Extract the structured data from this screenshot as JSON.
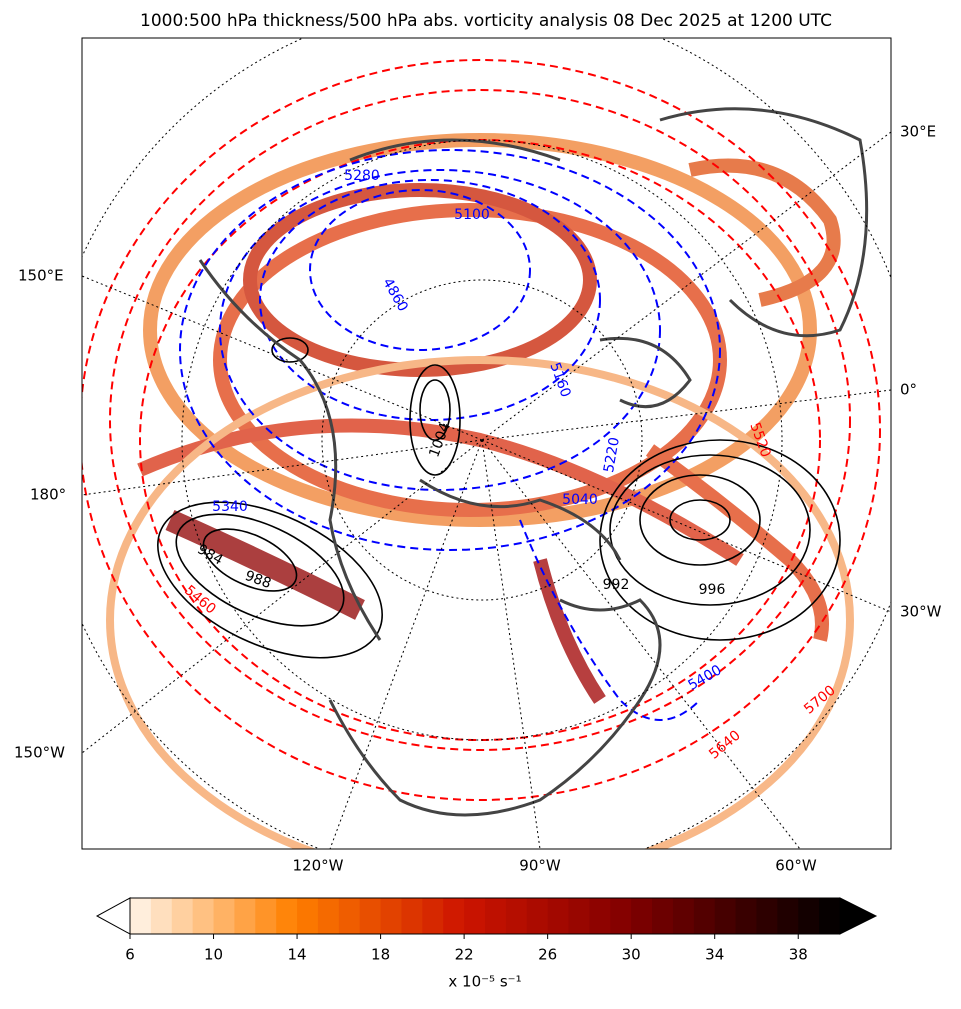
{
  "title": "1000:500 hPa thickness/500 hPa abs. vorticity analysis 08 Dec 2025 at 1200 UTC",
  "longitude_labels": [
    "30°E",
    "150°E",
    "0°",
    "180°",
    "30°W",
    "150°W",
    "120°W",
    "90°W",
    "60°W"
  ],
  "contour_labels": [
    {
      "text": "5280",
      "color": "#0000ff"
    },
    {
      "text": "5100",
      "color": "#0000ff"
    },
    {
      "text": "4860",
      "color": "#0000ff"
    },
    {
      "text": "5160",
      "color": "#0000ff"
    },
    {
      "text": "5220",
      "color": "#0000ff"
    },
    {
      "text": "5040",
      "color": "#0000ff"
    },
    {
      "text": "5340",
      "color": "#0000ff"
    },
    {
      "text": "5400",
      "color": "#0000ff"
    },
    {
      "text": "5460",
      "color": "#ff0000"
    },
    {
      "text": "5520",
      "color": "#ff0000"
    },
    {
      "text": "5640",
      "color": "#ff0000"
    },
    {
      "text": "5700",
      "color": "#ff0000"
    },
    {
      "text": "1004",
      "color": "#000000"
    },
    {
      "text": "988",
      "color": "#000000"
    },
    {
      "text": "996",
      "color": "#000000"
    },
    {
      "text": "992",
      "color": "#000000"
    },
    {
      "text": "984",
      "color": "#000000"
    }
  ],
  "colorbar": {
    "lim": [
      6,
      40
    ],
    "ticks": [
      6,
      10,
      14,
      18,
      22,
      26,
      30,
      34,
      38
    ],
    "label": "x 10⁻⁵ s⁻¹"
  }
}
